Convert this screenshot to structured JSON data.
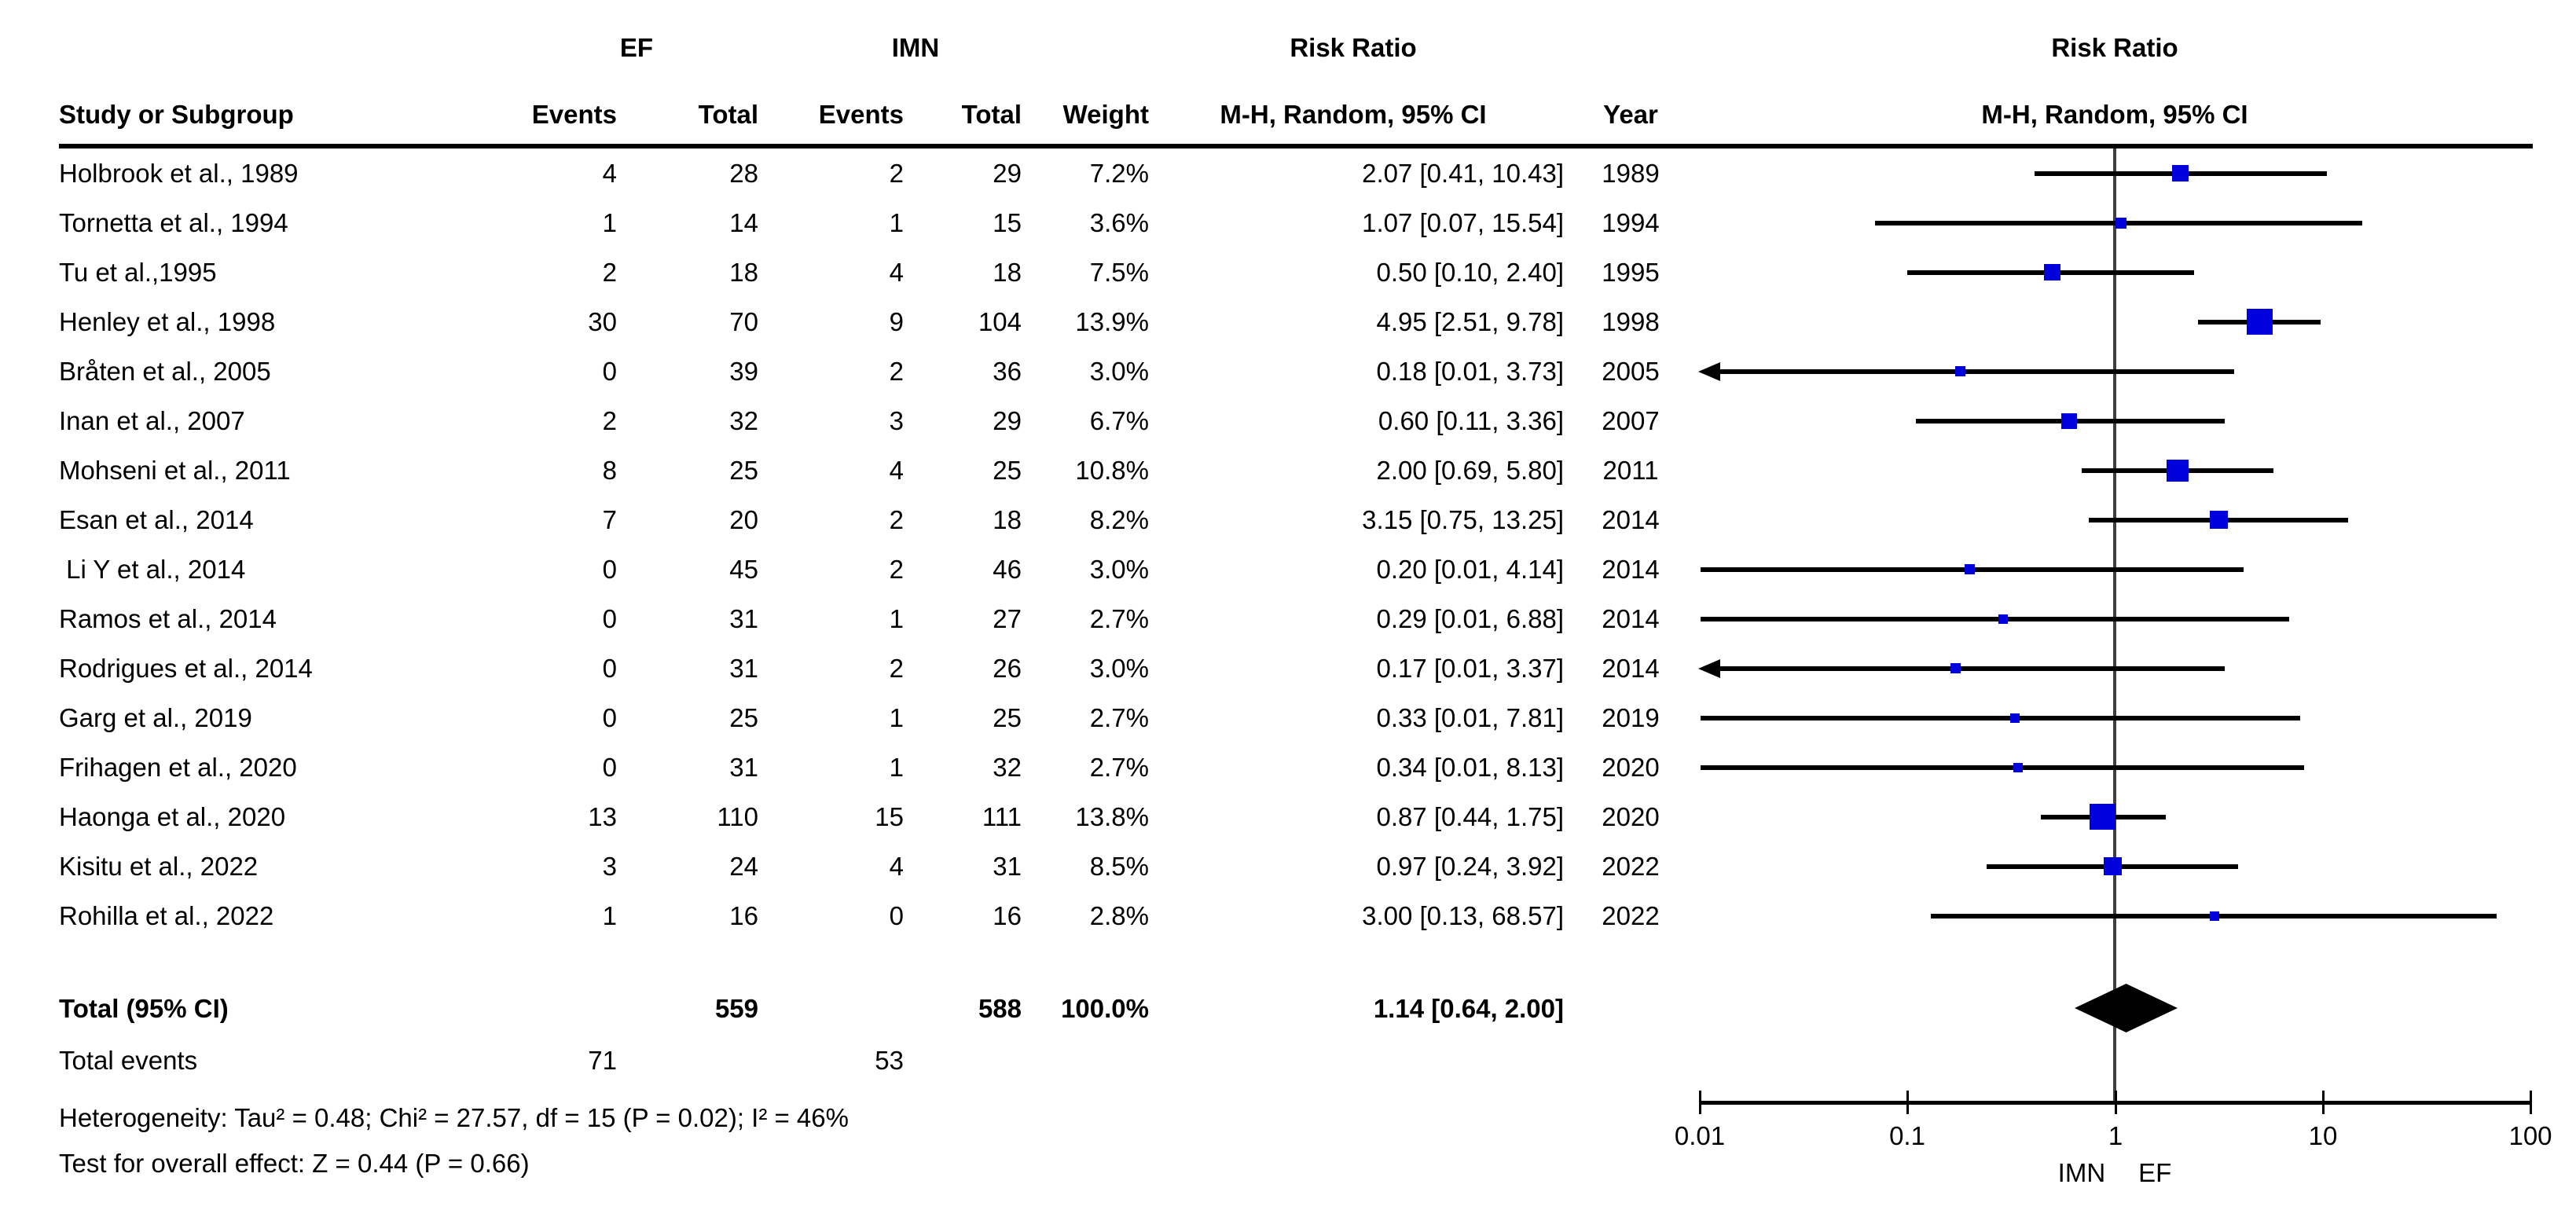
{
  "figure": {
    "header": {
      "study_col": "Study or Subgroup",
      "group_ef": "EF",
      "group_imn": "IMN",
      "events": "Events",
      "total": "Total",
      "weight": "Weight",
      "rr_title": "Risk Ratio",
      "rr_subtitle": "M-H, Random, 95% CI",
      "year": "Year",
      "plot_rr_title": "Risk Ratio",
      "plot_rr_subtitle": "M-H, Random, 95% CI"
    },
    "totals": {
      "label": "Total (95% CI)",
      "ef_total": "559",
      "imn_total": "588",
      "weight": "100.0%",
      "rr_text": "1.14 [0.64, 2.00]",
      "events_label": "Total events",
      "ef_events": "71",
      "imn_events": "53"
    },
    "footer": {
      "heterogeneity": "Heterogeneity: Tau² = 0.48; Chi² = 27.57, df = 15 (P = 0.02); I² = 46%",
      "overall_effect": "Test for overall effect: Z = 0.44 (P = 0.66)"
    },
    "axis": {
      "tick_labels": [
        "0.01",
        "0.1",
        "1",
        "10",
        "100"
      ],
      "tick_values": [
        0.01,
        0.1,
        1,
        10,
        100
      ],
      "favours_left": "IMN",
      "favours_right": "EF"
    },
    "colors": {
      "marker": "#0000DD",
      "diamond": "#000000",
      "ci_line": "#000000",
      "null_line": "#3f3f3f",
      "axis": "#000000"
    }
  },
  "chart_data": {
    "type": "forest",
    "effect_measure": "Risk Ratio, M-H, Random, 95% CI",
    "comparison_groups": [
      "EF",
      "IMN"
    ],
    "x_scale": "log10",
    "x_range": [
      0.01,
      100
    ],
    "null_value": 1,
    "studies": [
      {
        "name": "Holbrook et al., 1989",
        "ef_events": "4",
        "ef_total": "28",
        "imn_events": "2",
        "imn_total": "29",
        "weight": "7.2%",
        "weight_pct": 7.2,
        "rr_text": "2.07 [0.41, 10.43]",
        "year": "1989",
        "rr": 2.07,
        "ci_low": 0.41,
        "ci_high": 10.43,
        "clip_low": false
      },
      {
        "name": "Tornetta et al., 1994",
        "ef_events": "1",
        "ef_total": "14",
        "imn_events": "1",
        "imn_total": "15",
        "weight": "3.6%",
        "weight_pct": 3.6,
        "rr_text": "1.07 [0.07, 15.54]",
        "year": "1994",
        "rr": 1.07,
        "ci_low": 0.07,
        "ci_high": 15.54,
        "clip_low": false
      },
      {
        "name": "Tu et al.,1995",
        "ef_events": "2",
        "ef_total": "18",
        "imn_events": "4",
        "imn_total": "18",
        "weight": "7.5%",
        "weight_pct": 7.5,
        "rr_text": "0.50 [0.10, 2.40]",
        "year": "1995",
        "rr": 0.5,
        "ci_low": 0.1,
        "ci_high": 2.4,
        "clip_low": false
      },
      {
        "name": "Henley et al., 1998",
        "ef_events": "30",
        "ef_total": "70",
        "imn_events": "9",
        "imn_total": "104",
        "weight": "13.9%",
        "weight_pct": 13.9,
        "rr_text": "4.95 [2.51, 9.78]",
        "year": "1998",
        "rr": 4.95,
        "ci_low": 2.51,
        "ci_high": 9.78,
        "clip_low": false
      },
      {
        "name": "Bråten et al., 2005",
        "ef_events": "0",
        "ef_total": "39",
        "imn_events": "2",
        "imn_total": "36",
        "weight": "3.0%",
        "weight_pct": 3.0,
        "rr_text": "0.18 [0.01, 3.73]",
        "year": "2005",
        "rr": 0.18,
        "ci_low": 0.01,
        "ci_high": 3.73,
        "clip_low": true
      },
      {
        "name": "Inan et al., 2007",
        "ef_events": "2",
        "ef_total": "32",
        "imn_events": "3",
        "imn_total": "29",
        "weight": "6.7%",
        "weight_pct": 6.7,
        "rr_text": "0.60 [0.11, 3.36]",
        "year": "2007",
        "rr": 0.6,
        "ci_low": 0.11,
        "ci_high": 3.36,
        "clip_low": false
      },
      {
        "name": "Mohseni et al., 2011",
        "ef_events": "8",
        "ef_total": "25",
        "imn_events": "4",
        "imn_total": "25",
        "weight": "10.8%",
        "weight_pct": 10.8,
        "rr_text": "2.00 [0.69, 5.80]",
        "year": "2011",
        "rr": 2.0,
        "ci_low": 0.69,
        "ci_high": 5.8,
        "clip_low": false
      },
      {
        "name": "Esan et al., 2014",
        "ef_events": "7",
        "ef_total": "20",
        "imn_events": "2",
        "imn_total": "18",
        "weight": "8.2%",
        "weight_pct": 8.2,
        "rr_text": "3.15 [0.75, 13.25]",
        "year": "2014",
        "rr": 3.15,
        "ci_low": 0.75,
        "ci_high": 13.25,
        "clip_low": false
      },
      {
        "name": " Li Y et al., 2014",
        "ef_events": "0",
        "ef_total": "45",
        "imn_events": "2",
        "imn_total": "46",
        "weight": "3.0%",
        "weight_pct": 3.0,
        "rr_text": "0.20 [0.01, 4.14]",
        "year": "2014",
        "rr": 0.2,
        "ci_low": 0.01,
        "ci_high": 4.14,
        "clip_low": false
      },
      {
        "name": "Ramos et al., 2014",
        "ef_events": "0",
        "ef_total": "31",
        "imn_events": "1",
        "imn_total": "27",
        "weight": "2.7%",
        "weight_pct": 2.7,
        "rr_text": "0.29 [0.01, 6.88]",
        "year": "2014",
        "rr": 0.29,
        "ci_low": 0.01,
        "ci_high": 6.88,
        "clip_low": false
      },
      {
        "name": "Rodrigues et al., 2014",
        "ef_events": "0",
        "ef_total": "31",
        "imn_events": "2",
        "imn_total": "26",
        "weight": "3.0%",
        "weight_pct": 3.0,
        "rr_text": "0.17 [0.01, 3.37]",
        "year": "2014",
        "rr": 0.17,
        "ci_low": 0.01,
        "ci_high": 3.37,
        "clip_low": true
      },
      {
        "name": "Garg et al., 2019",
        "ef_events": "0",
        "ef_total": "25",
        "imn_events": "1",
        "imn_total": "25",
        "weight": "2.7%",
        "weight_pct": 2.7,
        "rr_text": "0.33 [0.01, 7.81]",
        "year": "2019",
        "rr": 0.33,
        "ci_low": 0.01,
        "ci_high": 7.81,
        "clip_low": false
      },
      {
        "name": "Frihagen et al., 2020",
        "ef_events": "0",
        "ef_total": "31",
        "imn_events": "1",
        "imn_total": "32",
        "weight": "2.7%",
        "weight_pct": 2.7,
        "rr_text": "0.34 [0.01, 8.13]",
        "year": "2020",
        "rr": 0.34,
        "ci_low": 0.01,
        "ci_high": 8.13,
        "clip_low": false
      },
      {
        "name": "Haonga et al., 2020",
        "ef_events": "13",
        "ef_total": "110",
        "imn_events": "15",
        "imn_total": "111",
        "weight": "13.8%",
        "weight_pct": 13.8,
        "rr_text": "0.87 [0.44, 1.75]",
        "year": "2020",
        "rr": 0.87,
        "ci_low": 0.44,
        "ci_high": 1.75,
        "clip_low": false
      },
      {
        "name": "Kisitu et al., 2022",
        "ef_events": "3",
        "ef_total": "24",
        "imn_events": "4",
        "imn_total": "31",
        "weight": "8.5%",
        "weight_pct": 8.5,
        "rr_text": "0.97 [0.24, 3.92]",
        "year": "2022",
        "rr": 0.97,
        "ci_low": 0.24,
        "ci_high": 3.92,
        "clip_low": false
      },
      {
        "name": "Rohilla et al., 2022",
        "ef_events": "1",
        "ef_total": "16",
        "imn_events": "0",
        "imn_total": "16",
        "weight": "2.8%",
        "weight_pct": 2.8,
        "rr_text": "3.00 [0.13, 68.57]",
        "year": "2022",
        "rr": 3.0,
        "ci_low": 0.13,
        "ci_high": 68.57,
        "clip_low": false
      }
    ],
    "overall": {
      "rr": 1.14,
      "ci_low": 0.64,
      "ci_high": 2.0,
      "weight_pct": 100.0,
      "heterogeneity": {
        "tau2": 0.48,
        "chi2": 27.57,
        "df": 15,
        "p": 0.02,
        "i2_pct": 46
      },
      "overall_effect": {
        "z": 0.44,
        "p": 0.66
      }
    }
  }
}
